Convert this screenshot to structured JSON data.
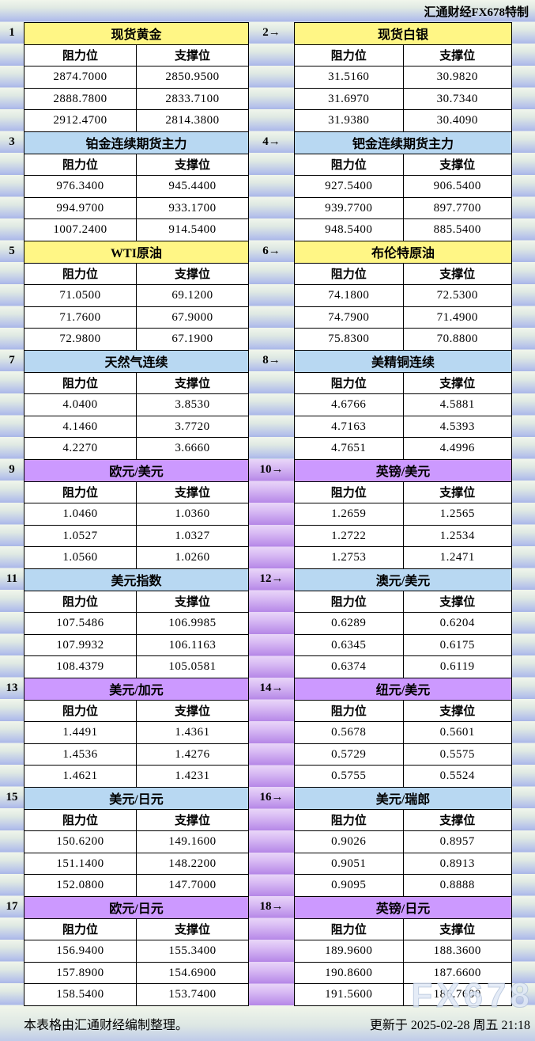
{
  "page_title": "汇通财经FX678特制",
  "labels": {
    "resistance": "阻力位",
    "support": "支撑位"
  },
  "colors": {
    "yellow": "#FFF685",
    "blue": "#B8D8F2",
    "purple": "#CC99FF"
  },
  "blocks": [
    {
      "label": "1",
      "title": "现货黄金",
      "color": "yellow",
      "rows": [
        [
          "2874.7000",
          "2850.9500"
        ],
        [
          "2888.7800",
          "2833.7100"
        ],
        [
          "2912.4700",
          "2814.3800"
        ]
      ]
    },
    {
      "label": "2→",
      "title": "现货白银",
      "color": "yellow",
      "gutter": "striped",
      "rows": [
        [
          "31.5160",
          "30.9820"
        ],
        [
          "31.6970",
          "30.7340"
        ],
        [
          "31.9380",
          "30.4090"
        ]
      ]
    },
    {
      "label": "3",
      "title": "铂金连续期货主力",
      "color": "blue",
      "rows": [
        [
          "976.3400",
          "945.4400"
        ],
        [
          "994.9700",
          "933.1700"
        ],
        [
          "1007.2400",
          "914.5400"
        ]
      ]
    },
    {
      "label": "4→",
      "title": "钯金连续期货主力",
      "color": "blue",
      "gutter": "striped",
      "rows": [
        [
          "927.5400",
          "906.5400"
        ],
        [
          "939.7700",
          "897.7700"
        ],
        [
          "948.5400",
          "885.5400"
        ]
      ]
    },
    {
      "label": "5",
      "title": "WTI原油",
      "color": "yellow",
      "rows": [
        [
          "71.0500",
          "69.1200"
        ],
        [
          "71.7600",
          "67.9000"
        ],
        [
          "72.9800",
          "67.1900"
        ]
      ]
    },
    {
      "label": "6→",
      "title": "布伦特原油",
      "color": "yellow",
      "gutter": "striped",
      "rows": [
        [
          "74.1800",
          "72.5300"
        ],
        [
          "74.7900",
          "71.4900"
        ],
        [
          "75.8300",
          "70.8800"
        ]
      ]
    },
    {
      "label": "7",
      "title": "天然气连续",
      "color": "blue",
      "rows": [
        [
          "4.0400",
          "3.8530"
        ],
        [
          "4.1460",
          "3.7720"
        ],
        [
          "4.2270",
          "3.6660"
        ]
      ]
    },
    {
      "label": "8→",
      "title": "美精铜连续",
      "color": "blue",
      "gutter": "striped",
      "rows": [
        [
          "4.6766",
          "4.5881"
        ],
        [
          "4.7163",
          "4.5393"
        ],
        [
          "4.7651",
          "4.4996"
        ]
      ]
    },
    {
      "label": "9",
      "title": "欧元/美元",
      "color": "purple",
      "rows": [
        [
          "1.0460",
          "1.0360"
        ],
        [
          "1.0527",
          "1.0327"
        ],
        [
          "1.0560",
          "1.0260"
        ]
      ]
    },
    {
      "label": "10→",
      "title": "英镑/美元",
      "color": "purple",
      "gutter": "purple",
      "rows": [
        [
          "1.2659",
          "1.2565"
        ],
        [
          "1.2722",
          "1.2534"
        ],
        [
          "1.2753",
          "1.2471"
        ]
      ]
    },
    {
      "label": "11",
      "title": "美元指数",
      "color": "blue",
      "rows": [
        [
          "107.5486",
          "106.9985"
        ],
        [
          "107.9932",
          "106.1163"
        ],
        [
          "108.4379",
          "105.0581"
        ]
      ]
    },
    {
      "label": "12→",
      "title": "澳元/美元",
      "color": "blue",
      "gutter": "purple",
      "rows": [
        [
          "0.6289",
          "0.6204"
        ],
        [
          "0.6345",
          "0.6175"
        ],
        [
          "0.6374",
          "0.6119"
        ]
      ]
    },
    {
      "label": "13",
      "title": "美元/加元",
      "color": "purple",
      "rows": [
        [
          "1.4491",
          "1.4361"
        ],
        [
          "1.4536",
          "1.4276"
        ],
        [
          "1.4621",
          "1.4231"
        ]
      ]
    },
    {
      "label": "14→",
      "title": "纽元/美元",
      "color": "purple",
      "gutter": "purple",
      "rows": [
        [
          "0.5678",
          "0.5601"
        ],
        [
          "0.5729",
          "0.5575"
        ],
        [
          "0.5755",
          "0.5524"
        ]
      ]
    },
    {
      "label": "15",
      "title": "美元/日元",
      "color": "blue",
      "rows": [
        [
          "150.6200",
          "149.1600"
        ],
        [
          "151.1400",
          "148.2200"
        ],
        [
          "152.0800",
          "147.7000"
        ]
      ]
    },
    {
      "label": "16→",
      "title": "美元/瑞郎",
      "color": "blue",
      "gutter": "purple",
      "rows": [
        [
          "0.9026",
          "0.8957"
        ],
        [
          "0.9051",
          "0.8913"
        ],
        [
          "0.9095",
          "0.8888"
        ]
      ]
    },
    {
      "label": "17",
      "title": "欧元/日元",
      "color": "purple",
      "rows": [
        [
          "156.9400",
          "155.3400"
        ],
        [
          "157.8900",
          "154.6900"
        ],
        [
          "158.5400",
          "153.7400"
        ]
      ]
    },
    {
      "label": "18→",
      "title": "英镑/日元",
      "color": "purple",
      "gutter": "purple",
      "rows": [
        [
          "189.9600",
          "188.3600"
        ],
        [
          "190.8600",
          "187.6600"
        ],
        [
          "191.5600",
          "186.7600"
        ]
      ]
    }
  ],
  "footer": {
    "left": "本表格由汇通财经编制整理。",
    "right": "更新于 2025-02-28 周五 21:18",
    "watermark": "FX678"
  }
}
